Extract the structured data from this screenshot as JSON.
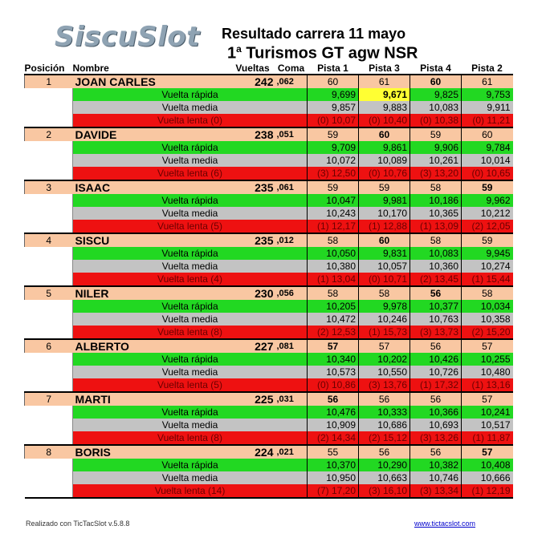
{
  "header": {
    "logo": "SiscuSlot",
    "title": "Resultado carrera  11 mayo",
    "subtitle_prefix": "1",
    "subtitle_sup": "a",
    "subtitle_rest": " Turismos GT agw NSR"
  },
  "columns": [
    "Posición",
    "Nombre",
    "Vueltas",
    "Coma",
    "Pista 1",
    "Pista 3",
    "Pista 4",
    "Pista 2"
  ],
  "row_labels": {
    "fast": "Vuelta rápida",
    "avg": "Vuelta media",
    "slow": "Vuelta  lenta"
  },
  "racers": [
    {
      "pos": "1",
      "name": "JOAN CARLES",
      "laps": "242",
      "coma": ",062",
      "slow_count": "(0)",
      "track_laps": [
        "60",
        "61",
        "60",
        "61"
      ],
      "bold_laps": [
        false,
        false,
        true,
        false
      ],
      "fast": [
        "9,699",
        "9,671",
        "9,825",
        "9,753"
      ],
      "fast_bold": [
        false,
        true,
        false,
        false
      ],
      "fast_yellow": [
        false,
        true,
        false,
        false
      ],
      "avg": [
        "9,857",
        "9,883",
        "10,083",
        "9,911"
      ],
      "slow": [
        "(0) 10,07",
        "(0) 10,40",
        "(0) 10,38",
        "(0) 11,21"
      ]
    },
    {
      "pos": "2",
      "name": "DAVIDE",
      "laps": "238",
      "coma": ",051",
      "slow_count": "(6)",
      "track_laps": [
        "59",
        "60",
        "59",
        "60"
      ],
      "bold_laps": [
        false,
        true,
        false,
        false
      ],
      "fast": [
        "9,709",
        "9,861",
        "9,906",
        "9,784"
      ],
      "fast_bold": [
        false,
        false,
        false,
        false
      ],
      "fast_yellow": [
        false,
        false,
        false,
        false
      ],
      "avg": [
        "10,072",
        "10,089",
        "10,261",
        "10,014"
      ],
      "slow": [
        "(3) 12,50",
        "(0) 10,76",
        "(3) 13,20",
        "(0) 10,65"
      ]
    },
    {
      "pos": "3",
      "name": "ISAAC",
      "laps": "235",
      "coma": ",061",
      "slow_count": "(5)",
      "track_laps": [
        "59",
        "59",
        "58",
        "59"
      ],
      "bold_laps": [
        false,
        false,
        false,
        true
      ],
      "fast": [
        "10,047",
        "9,981",
        "10,186",
        "9,962"
      ],
      "fast_bold": [
        false,
        false,
        false,
        false
      ],
      "fast_yellow": [
        false,
        false,
        false,
        false
      ],
      "avg": [
        "10,243",
        "10,170",
        "10,365",
        "10,212"
      ],
      "slow": [
        "(1) 12,17",
        "(1) 12,88",
        "(1) 13,09",
        "(2) 12,05"
      ]
    },
    {
      "pos": "4",
      "name": "SISCU",
      "laps": "235",
      "coma": ",012",
      "slow_count": "(4)",
      "track_laps": [
        "58",
        "60",
        "58",
        "59"
      ],
      "bold_laps": [
        false,
        true,
        false,
        false
      ],
      "fast": [
        "10,050",
        "9,831",
        "10,083",
        "9,945"
      ],
      "fast_bold": [
        false,
        false,
        false,
        false
      ],
      "fast_yellow": [
        false,
        false,
        false,
        false
      ],
      "avg": [
        "10,380",
        "10,057",
        "10,360",
        "10,274"
      ],
      "slow": [
        "(1) 13,04",
        "(0) 10,71",
        "(2) 13,45",
        "(1) 15,44"
      ]
    },
    {
      "pos": "5",
      "name": "NILER",
      "laps": "230",
      "coma": ",056",
      "slow_count": "(8)",
      "track_laps": [
        "58",
        "58",
        "56",
        "58"
      ],
      "bold_laps": [
        false,
        false,
        true,
        false
      ],
      "fast": [
        "10,205",
        "9,978",
        "10,377",
        "10,034"
      ],
      "fast_bold": [
        false,
        false,
        false,
        false
      ],
      "fast_yellow": [
        false,
        false,
        false,
        false
      ],
      "avg": [
        "10,472",
        "10,246",
        "10,763",
        "10,358"
      ],
      "slow": [
        "(2) 12,53",
        "(1) 15,73",
        "(3) 13,73",
        "(2) 15,20"
      ]
    },
    {
      "pos": "6",
      "name": "ALBERTO",
      "laps": "227",
      "coma": ",081",
      "slow_count": "(5)",
      "track_laps": [
        "57",
        "57",
        "56",
        "57"
      ],
      "bold_laps": [
        true,
        false,
        false,
        false
      ],
      "fast": [
        "10,340",
        "10,202",
        "10,426",
        "10,255"
      ],
      "fast_bold": [
        false,
        false,
        false,
        false
      ],
      "fast_yellow": [
        false,
        false,
        false,
        false
      ],
      "avg": [
        "10,573",
        "10,550",
        "10,726",
        "10,480"
      ],
      "slow": [
        "(0) 10,86",
        "(3) 13,76",
        "(1) 17,32",
        "(1) 13,16"
      ]
    },
    {
      "pos": "7",
      "name": "MARTI",
      "laps": "225",
      "coma": ",031",
      "slow_count": "(8)",
      "track_laps": [
        "56",
        "56",
        "56",
        "57"
      ],
      "bold_laps": [
        true,
        false,
        false,
        false
      ],
      "fast": [
        "10,476",
        "10,333",
        "10,366",
        "10,241"
      ],
      "fast_bold": [
        false,
        false,
        false,
        false
      ],
      "fast_yellow": [
        false,
        false,
        false,
        false
      ],
      "avg": [
        "10,909",
        "10,686",
        "10,693",
        "10,517"
      ],
      "slow": [
        "(2) 14,34",
        "(2) 15,12",
        "(3) 13,26",
        "(1) 11,87"
      ]
    },
    {
      "pos": "8",
      "name": "BORIS",
      "laps": "224",
      "coma": ",021",
      "slow_count": "(14)",
      "track_laps": [
        "55",
        "56",
        "56",
        "57"
      ],
      "bold_laps": [
        false,
        false,
        false,
        true
      ],
      "fast": [
        "10,370",
        "10,290",
        "10,382",
        "10,408"
      ],
      "fast_bold": [
        false,
        false,
        false,
        false
      ],
      "fast_yellow": [
        false,
        false,
        false,
        false
      ],
      "avg": [
        "10,950",
        "10,663",
        "10,746",
        "10,666"
      ],
      "slow": [
        "(7) 17,20",
        "(3) 16,10",
        "(3) 13,34",
        "(1) 12,19"
      ]
    }
  ],
  "footer": {
    "left": "Realizado con TicTacSlot v.5.8.8",
    "right": "www.tictacslot.com"
  },
  "colors": {
    "orange": "#f9c7a2",
    "green": "#22d822",
    "grey": "#c3c3c3",
    "red": "#ee1111",
    "yellow": "#ffff33"
  }
}
